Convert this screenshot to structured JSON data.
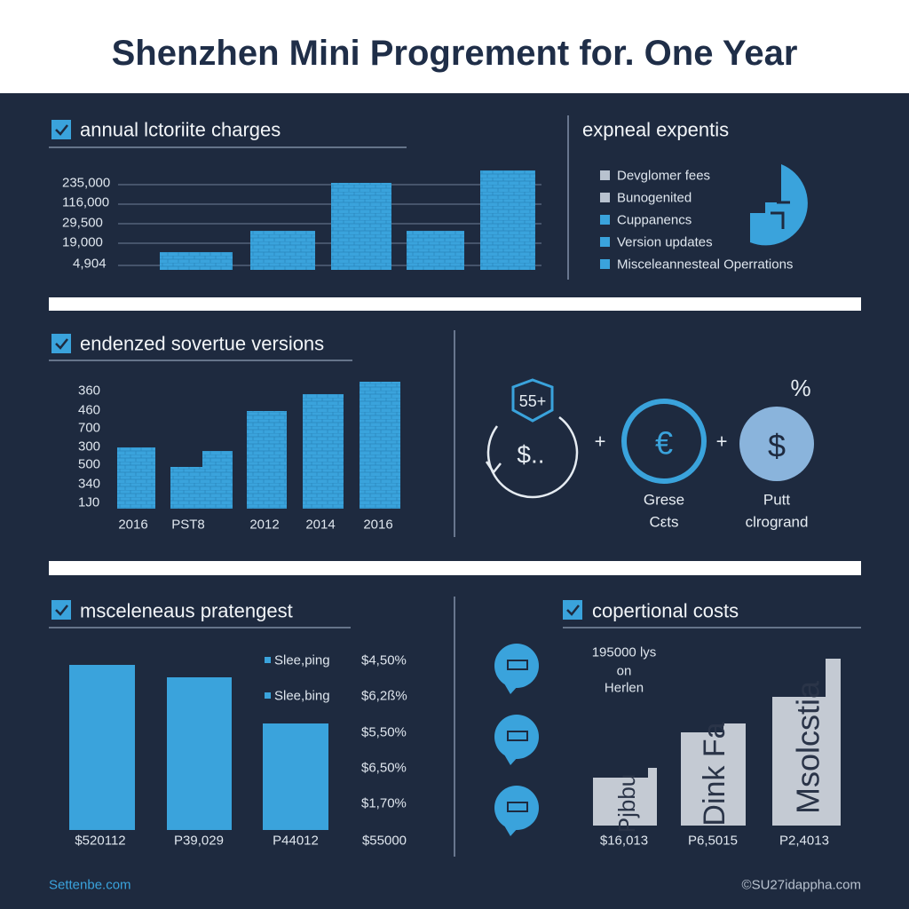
{
  "title": "Shenzhen Mini Progrement for.  One Year",
  "panels": [
    {
      "heading": "annual lctoriite charges",
      "axis_labels": [
        "235,000",
        "116,000",
        "29,500",
        "19,000",
        "4,904"
      ]
    },
    {
      "heading": "expneal expentis",
      "legend": [
        "Devglomer fees",
        "Bunogenited",
        "Cuppanencs",
        "Version updates",
        "Misceleannesteal Operrations"
      ]
    },
    {
      "heading": "endenzed sovertue versions",
      "axis_labels": [
        "360",
        "460",
        "700",
        "300",
        "500",
        "340",
        "1J0"
      ],
      "x_labels": [
        "2016",
        "PST8",
        "2012",
        "2014",
        "2016"
      ]
    },
    {
      "icon_texts": [
        "$..",
        "55+",
        "€",
        "$",
        "%"
      ],
      "operators": [
        "+",
        "+"
      ],
      "labels": [
        "Grese",
        "Cεts",
        "Putt",
        "clrogrand"
      ]
    },
    {
      "heading": "msceleneaus pratengest",
      "legend": [
        "Slee,ping",
        "Slee,bing"
      ],
      "values": [
        "$4,50%",
        "$6,2ß%",
        "$5,50%",
        "$6,50%",
        "$1,70%"
      ],
      "bar_labels": [
        "$520112",
        "P39,029",
        "P44012",
        "$55000"
      ]
    },
    {
      "heading": "copertional costs",
      "note": [
        "195000 lys",
        "on",
        "Herlen"
      ],
      "bar_texts": [
        "Pjbbu",
        "Dink Fa",
        "Msolcstia"
      ],
      "bar_labels": [
        "$16,013",
        "P6,5015",
        "P2,4013"
      ]
    }
  ],
  "footer": {
    "left": "Settenbe.com",
    "right": "©SU27idappha.com"
  }
}
